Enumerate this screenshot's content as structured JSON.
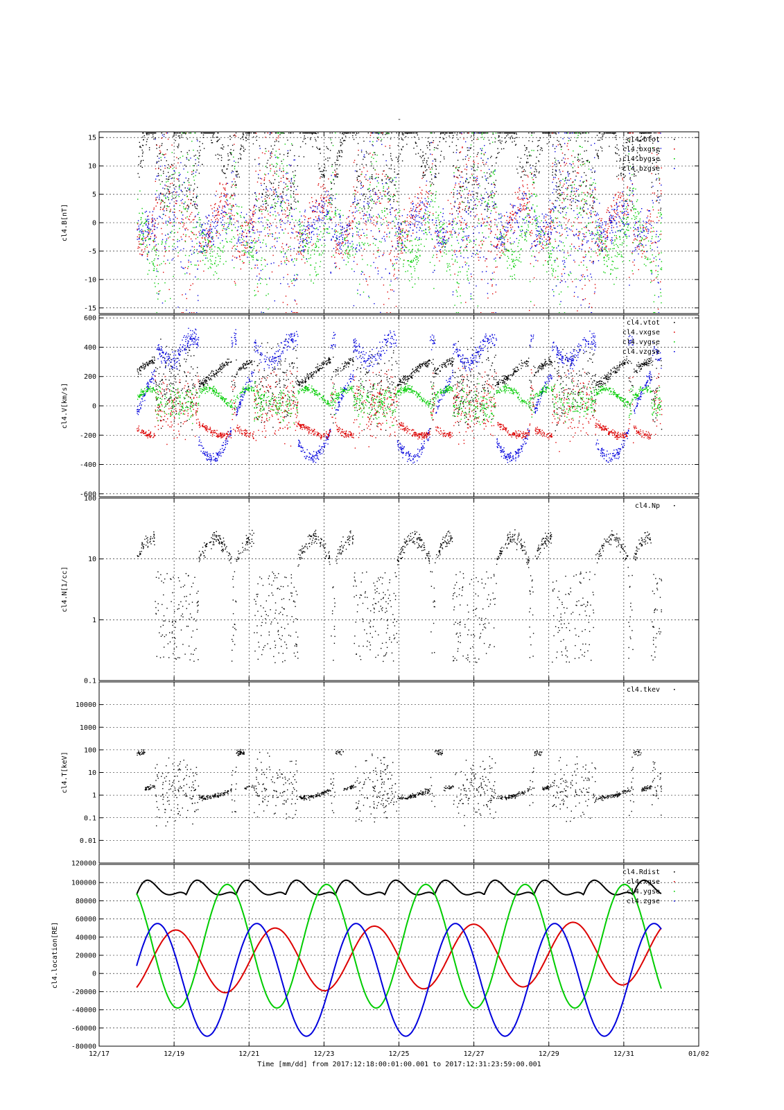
{
  "page": {
    "title": "-"
  },
  "x_axis": {
    "ticks": [
      "12/17",
      "12/19",
      "12/21",
      "12/23",
      "12/25",
      "12/27",
      "12/29",
      "12/31",
      "01/02"
    ],
    "tick_days": [
      0,
      2,
      4,
      6,
      8,
      10,
      12,
      14,
      16
    ],
    "title": "Time [mm/dd]  from 2017:12:18:00:01:00.001  to  2017:12:31:23:59:00.001",
    "data_start_day": 1.0,
    "data_end_day": 15.0
  },
  "colors": {
    "black": "#000000",
    "red": "#dd0000",
    "green": "#00cc00",
    "blue": "#0000dd"
  },
  "chart_data": [
    {
      "id": "panel-b",
      "type": "scatter",
      "ylabel": "cl4.B[nT]",
      "scale": "linear",
      "ylim": [
        -16,
        16
      ],
      "yticks": [
        15,
        10,
        5,
        0,
        -5,
        -10,
        -15
      ],
      "ytick_labels": [
        "15",
        "10",
        "5",
        "0",
        "-5",
        "-10",
        "-15"
      ],
      "grid": true,
      "legend_position": "top-right",
      "series": [
        {
          "name": "cl4.btot",
          "color": "#000000"
        },
        {
          "name": "cl4.bxgse",
          "color": "#dd0000"
        },
        {
          "name": "cl4.bygse",
          "color": "#00cc00"
        },
        {
          "name": "cl4.bzgse",
          "color": "#0000dd"
        }
      ]
    },
    {
      "id": "panel-v",
      "type": "scatter",
      "ylabel": "cl4.V[km/s]",
      "scale": "linear",
      "ylim": [
        -620,
        620
      ],
      "yticks": [
        600,
        400,
        200,
        0,
        -200,
        -400,
        -600
      ],
      "ytick_labels": [
        "600",
        "400",
        "200",
        "0",
        "-200",
        "-400",
        "-600"
      ],
      "grid": true,
      "legend_position": "top-right",
      "series": [
        {
          "name": "cl4.vtot",
          "color": "#000000"
        },
        {
          "name": "cl4.vxgse",
          "color": "#dd0000"
        },
        {
          "name": "cl4.vygse",
          "color": "#00cc00"
        },
        {
          "name": "cl4.vzgse",
          "color": "#0000dd"
        }
      ]
    },
    {
      "id": "panel-n",
      "type": "scatter",
      "ylabel": "cl4.N[1/cc]",
      "scale": "log",
      "ylim": [
        0.1,
        100
      ],
      "yticks": [
        100,
        10,
        1,
        0.1
      ],
      "ytick_labels": [
        "100",
        "10",
        "1",
        "0.1"
      ],
      "grid": true,
      "legend_position": "top-right",
      "series": [
        {
          "name": "cl4.Np",
          "color": "#000000"
        }
      ]
    },
    {
      "id": "panel-t",
      "type": "scatter",
      "ylabel": "cl4.T[keV]",
      "scale": "log",
      "ylim": [
        0.001,
        100000
      ],
      "yticks": [
        10000,
        1000,
        100,
        10,
        1,
        0.1,
        0.01
      ],
      "ytick_labels": [
        "10000",
        "1000",
        "100",
        "10",
        "1",
        "0.1",
        "0.01"
      ],
      "bottom_label": "120000",
      "grid": true,
      "legend_position": "top-right",
      "series": [
        {
          "name": "cl4.tkev",
          "color": "#000000"
        }
      ]
    },
    {
      "id": "panel-loc",
      "type": "line",
      "ylabel": "cl4.location[RE]",
      "scale": "linear",
      "ylim": [
        -80000,
        120000
      ],
      "yticks": [
        100000,
        80000,
        60000,
        40000,
        20000,
        0,
        -20000,
        -40000,
        -60000,
        -80000
      ],
      "ytick_labels": [
        "100000",
        "80000",
        "60000",
        "40000",
        "20000",
        "0",
        "-20000",
        "-40000",
        "-60000",
        "-80000"
      ],
      "grid": true,
      "legend_position": "top-right",
      "orbit_period_days": 2.65,
      "series": [
        {
          "name": "cl4.Rdist",
          "color": "#000000"
        },
        {
          "name": "cl4.xgse",
          "color": "#dd0000"
        },
        {
          "name": "cl4.ygse",
          "color": "#00cc00"
        },
        {
          "name": "cl4.zgse",
          "color": "#0000dd"
        }
      ]
    }
  ]
}
